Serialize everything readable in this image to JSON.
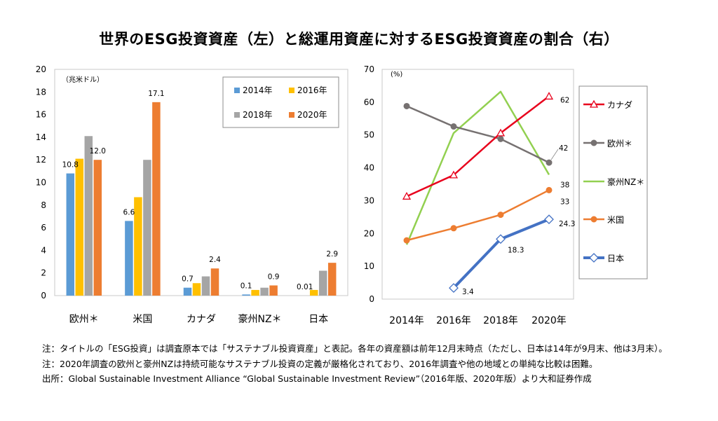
{
  "title": "世界のESG投資資産（左）と総運用資産に対するESG投資資産の割合（右）",
  "chart_data": [
    {
      "type": "bar",
      "unit_label": "（兆米ドル）",
      "categories": [
        "欧州＊",
        "米国",
        "カナダ",
        "豪州NZ＊",
        "日本"
      ],
      "series": [
        {
          "name": "2014年",
          "color": "#5b9bd5",
          "values": [
            10.8,
            6.6,
            0.7,
            0.1,
            0.0
          ]
        },
        {
          "name": "2016年",
          "color": "#ffc000",
          "values": [
            12.1,
            8.7,
            1.1,
            0.5,
            0.5
          ]
        },
        {
          "name": "2018年",
          "color": "#a5a5a5",
          "values": [
            14.1,
            12.0,
            1.7,
            0.7,
            2.2
          ]
        },
        {
          "name": "2020年",
          "color": "#ed7d31",
          "values": [
            12.0,
            17.1,
            2.4,
            0.9,
            2.9
          ]
        }
      ],
      "annotations": [
        {
          "category": 0,
          "series": 0,
          "text": "10.8"
        },
        {
          "category": 0,
          "series": 3,
          "text": "12.0"
        },
        {
          "category": 1,
          "series": 0,
          "text": "6.6"
        },
        {
          "category": 1,
          "series": 3,
          "text": "17.1"
        },
        {
          "category": 2,
          "series": 0,
          "text": "0.7"
        },
        {
          "category": 2,
          "series": 3,
          "text": "2.4"
        },
        {
          "category": 3,
          "series": 0,
          "text": "0.1"
        },
        {
          "category": 3,
          "series": 3,
          "text": "0.9"
        },
        {
          "category": 4,
          "series": 0,
          "text": "0.01"
        },
        {
          "category": 4,
          "series": 3,
          "text": "2.9"
        }
      ],
      "ylim": [
        0,
        20
      ],
      "yticks": [
        0,
        2,
        4,
        6,
        8,
        10,
        12,
        14,
        16,
        18,
        20
      ],
      "grid": false,
      "legend": "top-right"
    },
    {
      "type": "line",
      "unit_label": "(%)",
      "x": [
        "2014年",
        "2016年",
        "2018年",
        "2020年"
      ],
      "series": [
        {
          "name": "カナダ",
          "color": "#e8001c",
          "marker": "triangle",
          "values": [
            31.3,
            37.8,
            50.6,
            61.8
          ]
        },
        {
          "name": "欧州＊",
          "color": "#767171",
          "marker": "circle",
          "values": [
            58.8,
            52.6,
            48.8,
            41.6
          ]
        },
        {
          "name": "豪州NZ＊",
          "color": "#92d050",
          "marker": "none",
          "values": [
            16.6,
            50.6,
            63.2,
            37.9
          ]
        },
        {
          "name": "米国",
          "color": "#ed7d31",
          "marker": "circle",
          "values": [
            17.9,
            21.6,
            25.7,
            33.2
          ]
        },
        {
          "name": "日本",
          "color": "#4472c4",
          "marker": "diamond",
          "values": [
            null,
            3.4,
            18.3,
            24.3
          ]
        }
      ],
      "annotations": [
        {
          "text": "62",
          "series": 0,
          "point": 3
        },
        {
          "text": "42",
          "series": 1,
          "point": 3
        },
        {
          "text": "38",
          "series": 2,
          "point": 3
        },
        {
          "text": "33",
          "series": 3,
          "point": 3
        },
        {
          "text": "24.3",
          "series": 4,
          "point": 3
        },
        {
          "text": "18.3",
          "series": 4,
          "point": 2
        },
        {
          "text": "3.4",
          "series": 4,
          "point": 1
        }
      ],
      "ylim": [
        0,
        70
      ],
      "yticks": [
        0,
        10,
        20,
        30,
        40,
        50,
        60,
        70
      ],
      "grid": false,
      "legend": "right"
    }
  ],
  "notes": [
    "注：タイトルの「ESG投資」は調査原本では「サステナブル投資資産」と表記。各年の資産額は前年12月末時点（ただし、日本は14年が9月末、他は3月末）。",
    "注：2020年調査の欧州と豪州NZは持続可能なサステナブル投資の定義が厳格化されており、2016年調査や他の地域との単純な比較は困難。",
    "出所：Global Sustainable Investment Alliance “Global Sustainable Investment Review”（2016年版、2020年版）より大和証券作成"
  ]
}
